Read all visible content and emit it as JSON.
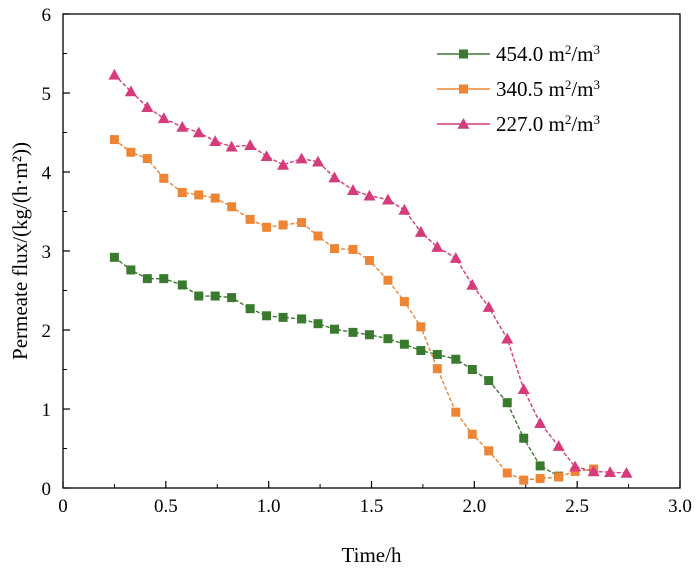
{
  "chart_data": {
    "type": "line",
    "xlabel": "Time/h",
    "ylabel": "Permeate flux/(kg/(h·m²))",
    "xlim": [
      0,
      3.0
    ],
    "ylim": [
      0,
      6
    ],
    "x_ticks": [
      "0",
      "0.5",
      "1.0",
      "1.5",
      "2.0",
      "2.5",
      "3.0"
    ],
    "y_ticks": [
      "0",
      "1",
      "2",
      "3",
      "4",
      "5",
      "6"
    ],
    "grid": false,
    "legend_position": "top-right",
    "series": [
      {
        "name": "454.0 m²/m³",
        "label_base": "454.0 m",
        "label_mid": "/m",
        "color": "#3a7a2e",
        "marker": "square",
        "x": [
          0.25,
          0.33,
          0.41,
          0.49,
          0.58,
          0.66,
          0.74,
          0.82,
          0.91,
          0.99,
          1.07,
          1.16,
          1.24,
          1.32,
          1.41,
          1.49,
          1.58,
          1.66,
          1.74,
          1.82,
          1.91,
          1.99,
          2.07,
          2.16,
          2.24,
          2.32,
          2.41
        ],
        "y": [
          2.92,
          2.76,
          2.65,
          2.65,
          2.57,
          2.43,
          2.43,
          2.41,
          2.27,
          2.18,
          2.16,
          2.14,
          2.08,
          2.01,
          1.97,
          1.94,
          1.89,
          1.82,
          1.74,
          1.69,
          1.63,
          1.5,
          1.36,
          1.08,
          0.63,
          0.28,
          0.15
        ]
      },
      {
        "name": "340.5 m²/m³",
        "label_base": "340.5 m",
        "label_mid": "/m",
        "color": "#ed8534",
        "marker": "square",
        "x": [
          0.25,
          0.33,
          0.41,
          0.49,
          0.58,
          0.66,
          0.74,
          0.82,
          0.91,
          0.99,
          1.07,
          1.16,
          1.24,
          1.32,
          1.41,
          1.49,
          1.58,
          1.66,
          1.74,
          1.82,
          1.91,
          1.99,
          2.07,
          2.16,
          2.24,
          2.32,
          2.41,
          2.49,
          2.58
        ],
        "y": [
          4.41,
          4.25,
          4.17,
          3.92,
          3.74,
          3.71,
          3.67,
          3.56,
          3.4,
          3.3,
          3.33,
          3.36,
          3.19,
          3.03,
          3.02,
          2.88,
          2.63,
          2.36,
          2.04,
          1.51,
          0.96,
          0.68,
          0.47,
          0.19,
          0.1,
          0.12,
          0.14,
          0.21,
          0.24
        ]
      },
      {
        "name": "227.0 m²/m³",
        "label_base": "227.0 m",
        "label_mid": "/m",
        "color": "#d63b7b",
        "marker": "triangle",
        "x": [
          0.25,
          0.33,
          0.41,
          0.49,
          0.58,
          0.66,
          0.74,
          0.82,
          0.91,
          0.99,
          1.07,
          1.16,
          1.24,
          1.32,
          1.41,
          1.49,
          1.58,
          1.66,
          1.74,
          1.82,
          1.91,
          1.99,
          2.07,
          2.16,
          2.24,
          2.32,
          2.41,
          2.49,
          2.58,
          2.66,
          2.74
        ],
        "y": [
          5.23,
          5.02,
          4.82,
          4.68,
          4.57,
          4.5,
          4.39,
          4.32,
          4.34,
          4.2,
          4.09,
          4.17,
          4.13,
          3.93,
          3.77,
          3.7,
          3.65,
          3.52,
          3.24,
          3.05,
          2.91,
          2.57,
          2.29,
          1.89,
          1.25,
          0.82,
          0.53,
          0.27,
          0.21,
          0.2,
          0.19
        ]
      }
    ]
  }
}
